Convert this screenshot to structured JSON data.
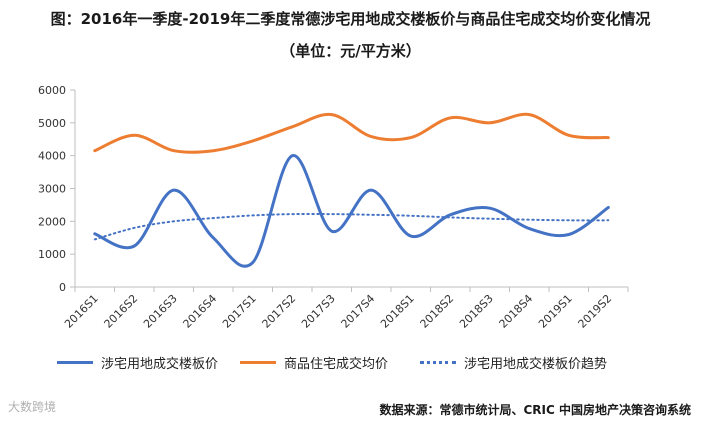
{
  "title_line1": "图：2016年一季度-2019年二季度常德涉宅用地成交楼板价与商品住宅成交均价变化情况",
  "title_line2": "（单位：元/平方米）",
  "source": "数据来源：常德市统计局、CRIC 中国房地产决策咨询系统",
  "watermark": "大数跨境",
  "colors": {
    "blue": "#4472C4",
    "orange": "#ED7D31",
    "axis": "#BFBFBF"
  },
  "chart_data": {
    "type": "line",
    "categories": [
      "2016S1",
      "2016S2",
      "2016S3",
      "2016S4",
      "2017S1",
      "2017S2",
      "2017S3",
      "2017S4",
      "2018S1",
      "2018S2",
      "2018S3",
      "2018S4",
      "2019S1",
      "2019S2"
    ],
    "ylim": [
      0,
      6000
    ],
    "yticks": [
      0,
      1000,
      2000,
      3000,
      4000,
      5000,
      6000
    ],
    "grid": false,
    "legend_position": "bottom",
    "series": [
      {
        "name": "涉宅用地成交楼板价",
        "color": "#4472C4",
        "style": "solid",
        "values": [
          1620,
          1250,
          2950,
          1500,
          750,
          4000,
          1700,
          2950,
          1550,
          2200,
          2400,
          1780,
          1600,
          2420
        ]
      },
      {
        "name": "商品住宅成交均价",
        "color": "#ED7D31",
        "style": "solid",
        "values": [
          4150,
          4620,
          4150,
          4150,
          4450,
          4880,
          5250,
          4580,
          4550,
          5150,
          5000,
          5250,
          4620,
          4550
        ]
      },
      {
        "name": "涉宅用地成交楼板价趋势",
        "color": "#4472C4",
        "style": "dotted",
        "values": [
          1450,
          1800,
          2000,
          2100,
          2180,
          2220,
          2220,
          2200,
          2170,
          2120,
          2080,
          2050,
          2030,
          2030
        ]
      }
    ]
  }
}
